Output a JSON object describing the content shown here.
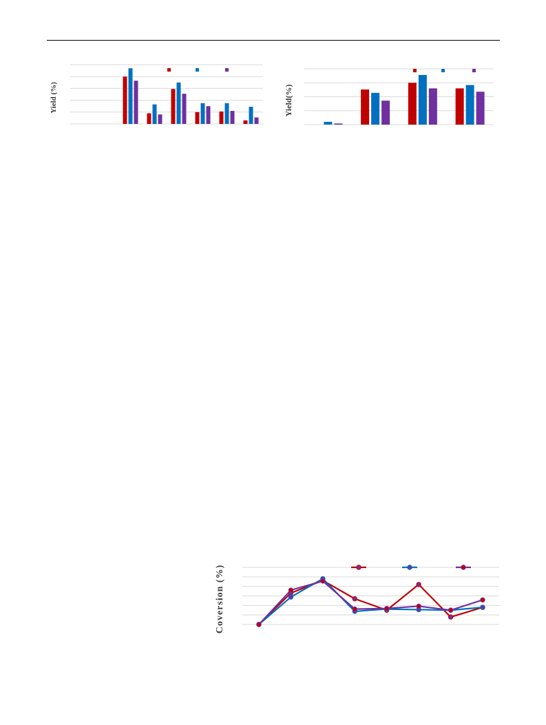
{
  "colors": {
    "red": "#c00000",
    "blue": "#0070c0",
    "purple": "#7030a0",
    "grid": "#d9d9d9"
  },
  "chart_data": [
    {
      "type": "bar",
      "ylabel": "Yield (%)",
      "ylim": [
        0,
        100
      ],
      "grid": true,
      "legend": "top-center",
      "categories": [
        "",
        "",
        "",
        "",
        "",
        "",
        "",
        ""
      ],
      "series": [
        {
          "values": [
            0,
            0,
            80,
            18,
            59,
            20,
            21,
            6
          ]
        },
        {
          "values": [
            0,
            0,
            94,
            33,
            70,
            35,
            35,
            29
          ]
        },
        {
          "values": [
            0,
            0,
            73,
            16,
            51,
            30,
            22,
            11
          ]
        }
      ]
    },
    {
      "type": "bar",
      "ylabel": "Yield(%)",
      "ylim": [
        0,
        100
      ],
      "grid": true,
      "legend": "top-right",
      "categories": [
        "",
        "",
        "",
        ""
      ],
      "series": [
        {
          "values": [
            0,
            63,
            75,
            65
          ]
        },
        {
          "values": [
            5,
            57,
            89,
            71
          ]
        },
        {
          "values": [
            2,
            43,
            65,
            59
          ]
        }
      ]
    },
    {
      "type": "line",
      "ylabel": "Coversion (%)",
      "ylim": [
        0,
        100
      ],
      "grid": true,
      "legend": "top-right",
      "x": [
        1,
        2,
        3,
        4,
        5,
        6,
        7,
        8
      ],
      "series": [
        {
          "values": [
            0,
            55,
            77,
            45,
            25,
            70,
            13,
            30
          ]
        },
        {
          "values": [
            0,
            48,
            80,
            23,
            27,
            26,
            25,
            30
          ]
        },
        {
          "values": [
            0,
            60,
            76,
            27,
            28,
            32,
            25,
            43
          ]
        }
      ]
    }
  ]
}
